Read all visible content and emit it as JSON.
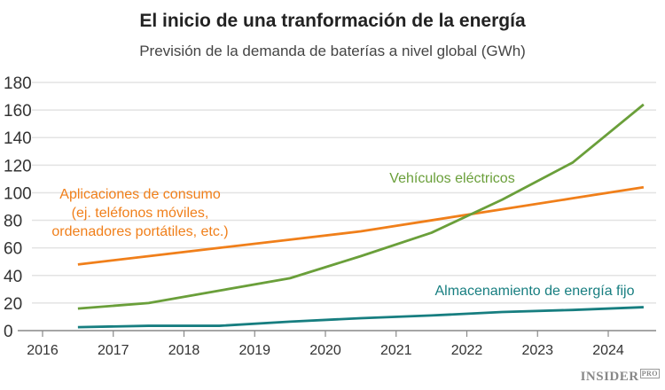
{
  "chart_data": {
    "type": "line",
    "title": "El inicio de una tranformación de la energía",
    "subtitle": "Previsión de la demanda de baterías a nivel global (GWh)",
    "xlabel": "",
    "ylabel": "",
    "xlim": [
      2016,
      2024.7
    ],
    "ylim": [
      0,
      180
    ],
    "xticks": [
      "2016",
      "2017",
      "2018",
      "2019",
      "2020",
      "2021",
      "2022",
      "2023",
      "2024"
    ],
    "yticks": [
      "0",
      "20",
      "40",
      "60",
      "80",
      "100",
      "120",
      "140",
      "160",
      "180"
    ],
    "grid": true,
    "x": [
      2016.5,
      2017.5,
      2018.5,
      2019.5,
      2020.5,
      2021.5,
      2022.5,
      2023.5,
      2024.5
    ],
    "series": [
      {
        "name": "Aplicaciones de consumo (ej. teléfonos móviles, ordenadores portátiles, etc.)",
        "label_lines": [
          "Aplicaciones de consumo",
          "(ej. teléfonos móviles,",
          "ordenadores portátiles, etc.)"
        ],
        "color": "#f07f1a",
        "values": [
          48,
          54,
          60,
          66,
          72,
          80,
          88,
          96,
          104
        ]
      },
      {
        "name": "Vehículos eléctricos",
        "label_lines": [
          "Vehículos eléctricos"
        ],
        "color": "#6a9f3a",
        "values": [
          16,
          20,
          29,
          38,
          54,
          71,
          95,
          122,
          164
        ]
      },
      {
        "name": "Almacenamiento de energía fijo",
        "label_lines": [
          "Almacenamiento de energía fijo"
        ],
        "color": "#177e80",
        "values": [
          2.5,
          3.5,
          3.5,
          6.5,
          9,
          11,
          13.5,
          15,
          17
        ]
      }
    ]
  },
  "brand": {
    "name": "INSIDER",
    "suffix": "PRO"
  }
}
